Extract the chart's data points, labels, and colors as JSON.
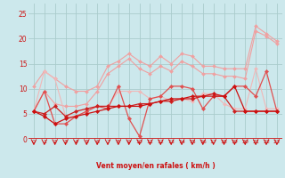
{
  "x": [
    0,
    1,
    2,
    3,
    4,
    5,
    6,
    7,
    8,
    9,
    10,
    11,
    12,
    13,
    14,
    15,
    16,
    17,
    18,
    19,
    20,
    21,
    22,
    23
  ],
  "series": [
    {
      "name": "line_pale1",
      "color": "#f0a0a0",
      "lw": 0.8,
      "ms": 2.0,
      "y": [
        10.5,
        13.5,
        12.0,
        10.5,
        9.5,
        9.5,
        10.5,
        14.5,
        15.5,
        17.0,
        15.5,
        14.5,
        16.5,
        15.0,
        17.0,
        16.5,
        14.5,
        14.5,
        14.0,
        14.0,
        14.0,
        22.5,
        21.0,
        19.5
      ]
    },
    {
      "name": "line_pale2",
      "color": "#f0a0a0",
      "lw": 0.8,
      "ms": 2.0,
      "y": [
        5.5,
        9.5,
        7.0,
        6.5,
        6.5,
        7.0,
        9.5,
        13.0,
        14.5,
        16.0,
        14.0,
        13.0,
        14.5,
        13.5,
        15.5,
        14.5,
        13.0,
        13.0,
        12.5,
        12.5,
        12.0,
        21.5,
        20.5,
        19.0
      ]
    },
    {
      "name": "line_pale3",
      "color": "#f0b8b8",
      "lw": 0.8,
      "ms": 2.0,
      "y": [
        5.5,
        13.5,
        12.0,
        4.5,
        4.5,
        5.5,
        6.5,
        6.5,
        9.5,
        9.5,
        9.5,
        8.0,
        8.5,
        7.5,
        8.0,
        7.5,
        9.0,
        9.0,
        7.0,
        6.0,
        6.0,
        14.0,
        6.0,
        6.0
      ]
    },
    {
      "name": "line_med1",
      "color": "#e05050",
      "lw": 0.9,
      "ms": 2.2,
      "y": [
        5.5,
        9.5,
        3.0,
        3.0,
        4.5,
        5.5,
        6.5,
        6.0,
        10.5,
        4.0,
        0.5,
        8.0,
        8.5,
        10.5,
        10.5,
        10.0,
        6.0,
        8.5,
        8.5,
        10.5,
        10.5,
        8.5,
        13.5,
        5.5
      ]
    },
    {
      "name": "line_med2",
      "color": "#cc2020",
      "lw": 0.9,
      "ms": 2.2,
      "y": [
        5.5,
        5.0,
        6.5,
        4.5,
        5.5,
        6.0,
        6.5,
        6.5,
        6.5,
        6.5,
        7.0,
        7.0,
        7.5,
        7.5,
        8.0,
        8.0,
        8.5,
        8.5,
        8.5,
        5.5,
        5.5,
        5.5,
        5.5,
        5.5
      ]
    },
    {
      "name": "line_dark",
      "color": "#cc1010",
      "lw": 0.9,
      "ms": 2.2,
      "y": [
        5.5,
        4.5,
        3.0,
        4.0,
        4.5,
        5.0,
        5.5,
        6.0,
        6.5,
        6.5,
        6.5,
        7.0,
        7.5,
        8.0,
        8.0,
        8.5,
        8.5,
        9.0,
        8.5,
        10.5,
        5.5,
        5.5,
        5.5,
        5.5
      ]
    }
  ],
  "xlabel": "Vent moyen/en rafales ( km/h )",
  "xlim": [
    -0.5,
    23.5
  ],
  "ylim": [
    0,
    27
  ],
  "xticks": [
    0,
    1,
    2,
    3,
    4,
    5,
    6,
    7,
    8,
    9,
    10,
    11,
    12,
    13,
    14,
    15,
    16,
    17,
    18,
    19,
    20,
    21,
    22,
    23
  ],
  "yticks": [
    0,
    5,
    10,
    15,
    20,
    25
  ],
  "bg_color": "#cce8ec",
  "grid_color": "#aacccc",
  "red_color": "#cc1010",
  "xlabel_color": "#cc1010",
  "tick_color": "#cc1010"
}
